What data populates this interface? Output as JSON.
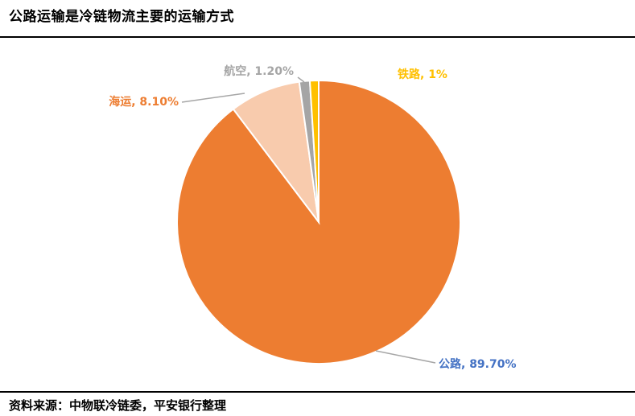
{
  "title": "公路运输是冷链物流主要的运输方式",
  "source": "资料来源：中物联冷链委，平安银行整理",
  "chart_data": {
    "type": "pie",
    "title": "公路运输是冷链物流主要的运输方式",
    "start_angle_deg": 0,
    "series": [
      {
        "name": "公路",
        "value": 89.7,
        "label": "公路, 89.70%",
        "color": "#ED7D31",
        "label_color": "#4472C4"
      },
      {
        "name": "海运",
        "value": 8.1,
        "label": "海运, 8.10%",
        "color": "#F8CBAD",
        "label_color": "#ED7D31"
      },
      {
        "name": "航空",
        "value": 1.2,
        "label": "航空, 1.20%",
        "color": "#A5A5A5",
        "label_color": "#A5A5A5"
      },
      {
        "name": "铁路",
        "value": 1.0,
        "label": "铁路, 1%",
        "color": "#FFC000",
        "label_color": "#FFC000"
      }
    ]
  }
}
